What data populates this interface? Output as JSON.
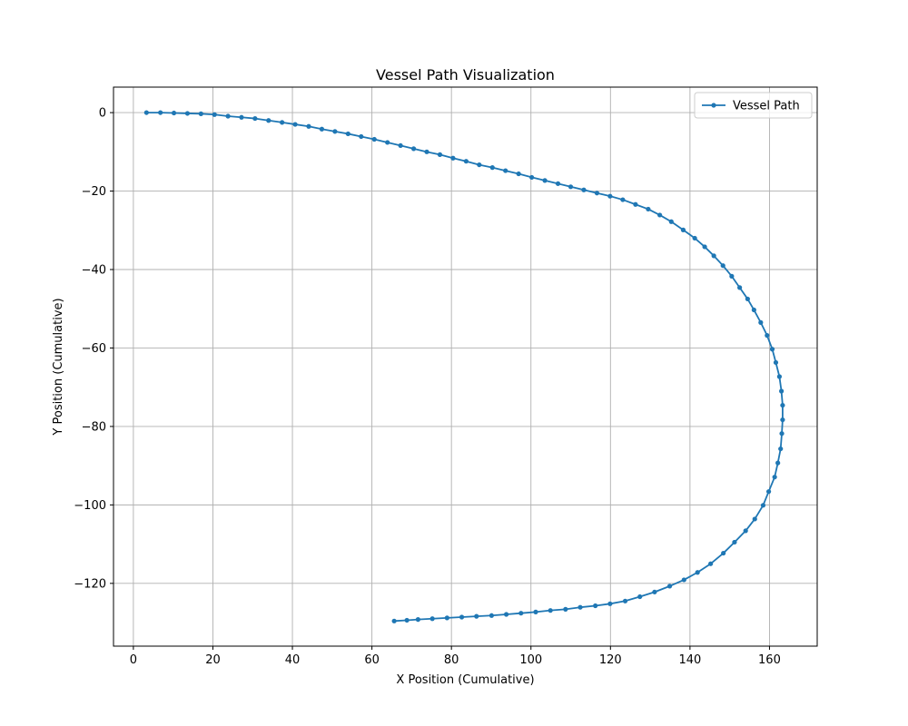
{
  "chart_data": {
    "type": "line",
    "title": "Vessel Path Visualization",
    "xlabel": "X Position (Cumulative)",
    "ylabel": "Y Position (Cumulative)",
    "xlim": [
      -5,
      172
    ],
    "ylim": [
      -136,
      6.5
    ],
    "xticks": [
      0,
      20,
      40,
      60,
      80,
      100,
      120,
      140,
      160
    ],
    "yticks": [
      0,
      -20,
      -40,
      -60,
      -80,
      -100,
      -120
    ],
    "grid": true,
    "legend_position": "top-right",
    "series": [
      {
        "name": "Vessel Path",
        "color": "#1f77b4",
        "marker": "circle",
        "x": [
          3.3,
          6.8,
          10.2,
          13.6,
          17.0,
          20.4,
          23.8,
          27.2,
          30.6,
          34.0,
          37.4,
          40.7,
          44.1,
          47.4,
          50.7,
          54.0,
          57.3,
          60.6,
          63.9,
          67.2,
          70.5,
          73.8,
          77.1,
          80.4,
          83.7,
          87.0,
          90.3,
          93.6,
          96.9,
          100.2,
          103.5,
          106.8,
          110.0,
          113.3,
          116.6,
          119.9,
          123.1,
          126.3,
          129.5,
          132.4,
          135.3,
          138.3,
          141.2,
          143.7,
          146.0,
          148.3,
          150.5,
          152.5,
          154.5,
          156.1,
          157.8,
          159.4,
          160.7,
          161.6,
          162.5,
          163.0,
          163.3,
          163.3,
          163.1,
          162.8,
          162.1,
          161.3,
          159.8,
          158.4,
          156.3,
          154.0,
          151.2,
          148.4,
          145.2,
          141.9,
          138.5,
          134.9,
          131.1,
          127.4,
          123.7,
          119.9,
          116.2,
          112.4,
          108.7,
          104.9,
          101.2,
          97.5,
          93.8,
          90.1,
          86.3,
          82.6,
          78.9,
          75.2,
          71.6,
          68.8,
          65.6
        ],
        "y": [
          0.0,
          0.0,
          -0.1,
          -0.2,
          -0.3,
          -0.5,
          -0.9,
          -1.2,
          -1.5,
          -2.0,
          -2.5,
          -3.0,
          -3.5,
          -4.2,
          -4.8,
          -5.4,
          -6.1,
          -6.8,
          -7.6,
          -8.4,
          -9.2,
          -10.0,
          -10.7,
          -11.6,
          -12.4,
          -13.3,
          -14.0,
          -14.8,
          -15.6,
          -16.5,
          -17.3,
          -18.1,
          -18.9,
          -19.7,
          -20.5,
          -21.3,
          -22.2,
          -23.4,
          -24.6,
          -26.1,
          -27.8,
          -29.9,
          -32.0,
          -34.2,
          -36.5,
          -39.0,
          -41.7,
          -44.6,
          -47.5,
          -50.3,
          -53.5,
          -56.8,
          -60.3,
          -63.7,
          -67.3,
          -71.0,
          -74.6,
          -78.3,
          -81.8,
          -85.7,
          -89.3,
          -92.9,
          -96.6,
          -100.1,
          -103.6,
          -106.6,
          -109.5,
          -112.3,
          -115.0,
          -117.2,
          -119.1,
          -120.7,
          -122.2,
          -123.4,
          -124.5,
          -125.2,
          -125.7,
          -126.1,
          -126.6,
          -126.9,
          -127.3,
          -127.6,
          -127.9,
          -128.2,
          -128.4,
          -128.6,
          -128.8,
          -129.0,
          -129.2,
          -129.4,
          -129.6
        ]
      }
    ]
  }
}
